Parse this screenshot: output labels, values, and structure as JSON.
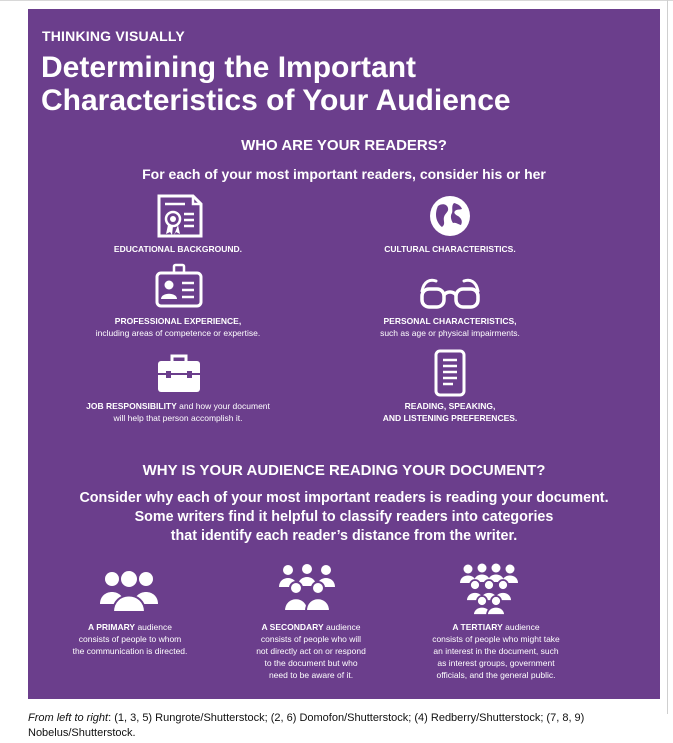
{
  "kicker": "THINKING VISUALLY",
  "title_line1": "Determining the Important",
  "title_line2": "Characteristics of Your Audience",
  "section1": {
    "heading": "WHO ARE YOUR READERS?",
    "lead": "For each of your most important readers, consider his or her",
    "items": [
      {
        "icon": "certificate-icon",
        "bold": "EDUCATIONAL BACKGROUND.",
        "rest": ""
      },
      {
        "icon": "globe-icon",
        "bold": "CULTURAL CHARACTERISTICS.",
        "rest": ""
      },
      {
        "icon": "id-badge-icon",
        "bold": "PROFESSIONAL EXPERIENCE,",
        "rest": "including areas of competence or expertise."
      },
      {
        "icon": "glasses-icon",
        "bold": "PERSONAL CHARACTERISTICS,",
        "rest": "such as age or physical impairments."
      },
      {
        "icon": "briefcase-icon",
        "bold": "JOB RESPONSIBILITY",
        "rest1": " and how your document",
        "rest2": "will help that person accomplish it."
      },
      {
        "icon": "tablet-icon",
        "bold1": "READING, SPEAKING,",
        "bold2": "AND LISTENING PREFERENCES."
      }
    ]
  },
  "section2": {
    "heading": "WHY IS YOUR AUDIENCE READING YOUR DOCUMENT?",
    "lead_line1": "Consider why each of your most important readers is reading your document.",
    "lead_line2": "Some writers find it helpful to classify readers into categories",
    "lead_line3": "that identify each reader’s distance from the writer.",
    "audiences": [
      {
        "icon": "group-small-icon",
        "bold": "A PRIMARY",
        "line1": " audience",
        "line2": "consists of people to whom",
        "line3": "the communication is directed."
      },
      {
        "icon": "group-medium-icon",
        "bold": "A SECONDARY",
        "line1": " audience",
        "line2": "consists of people who will",
        "line3": "not directly act on or respond",
        "line4": "to the document but who",
        "line5": "need to be aware of it."
      },
      {
        "icon": "group-large-icon",
        "bold": "A TERTIARY",
        "line1": " audience",
        "line2": "consists of people who might take",
        "line3": "an interest in the document, such",
        "line4": "as interest groups, government",
        "line5": "officials, and the general public."
      }
    ]
  },
  "caption": {
    "italic": "From left to right",
    "text": ": (1, 3, 5) Rungrote/Shutterstock; (2, 6) Domofon/Shutterstock; (4) Redberry/Shutterstock; (7, 8, 9) Nobelus/Shutterstock."
  },
  "colors": {
    "panel": "#6b3e8c",
    "text": "#ffffff"
  }
}
